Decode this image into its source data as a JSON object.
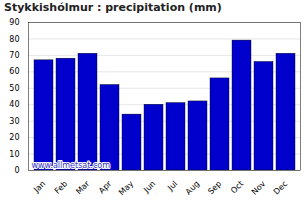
{
  "chart_data": {
    "type": "bar",
    "title": "Stykkishólmur : precipitation (mm)",
    "categories": [
      "Jan",
      "Feb",
      "Mar",
      "Apr",
      "May",
      "Jun",
      "Jul",
      "Aug",
      "Sep",
      "Oct",
      "Nov",
      "Dec"
    ],
    "values": [
      67,
      68,
      71,
      52,
      34,
      40,
      41,
      42,
      56,
      79,
      66,
      71
    ],
    "color": "#0000cc",
    "ylim": [
      0,
      90
    ],
    "yticks": [
      0,
      10,
      20,
      30,
      40,
      50,
      60,
      70,
      80,
      90
    ],
    "grid": true,
    "annotations": [
      "www.allmetsat.com"
    ]
  }
}
